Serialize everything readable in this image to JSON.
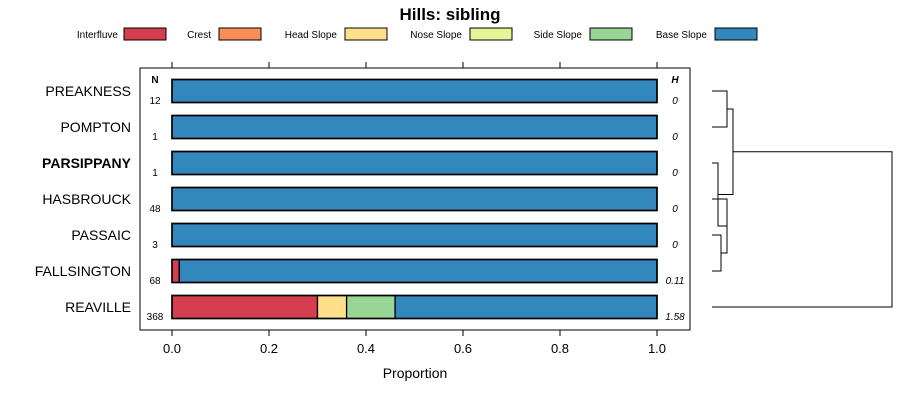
{
  "chart_data": {
    "type": "bar",
    "subtype": "stacked-horizontal-proportion",
    "title": "Hills: sibling",
    "xlabel": "Proportion",
    "xlim": [
      0,
      1
    ],
    "xticks": [
      0.0,
      0.2,
      0.4,
      0.6,
      0.8,
      1.0
    ],
    "xtick_labels": [
      "0.0",
      "0.2",
      "0.4",
      "0.6",
      "0.8",
      "1.0"
    ],
    "n_header": "N",
    "h_header": "H",
    "legend_placement": "top",
    "classes": [
      {
        "name": "Interfluve",
        "color": "#D53E4F"
      },
      {
        "name": "Crest",
        "color": "#FC8D59"
      },
      {
        "name": "Head Slope",
        "color": "#FEE08B"
      },
      {
        "name": "Nose Slope",
        "color": "#E6F598"
      },
      {
        "name": "Side Slope",
        "color": "#99D594"
      },
      {
        "name": "Base Slope",
        "color": "#3288BD"
      }
    ],
    "rows": [
      {
        "label": "PREAKNESS",
        "bold": false,
        "n": "12",
        "h": "0",
        "values": [
          0,
          0,
          0,
          0,
          0,
          1.0
        ]
      },
      {
        "label": "POMPTON",
        "bold": false,
        "n": "1",
        "h": "0",
        "values": [
          0,
          0,
          0,
          0,
          0,
          1.0
        ]
      },
      {
        "label": "PARSIPPANY",
        "bold": true,
        "n": "1",
        "h": "0",
        "values": [
          0,
          0,
          0,
          0,
          0,
          1.0
        ]
      },
      {
        "label": "HASBROUCK",
        "bold": false,
        "n": "48",
        "h": "0",
        "values": [
          0,
          0,
          0,
          0,
          0,
          1.0
        ]
      },
      {
        "label": "PASSAIC",
        "bold": false,
        "n": "3",
        "h": "0",
        "values": [
          0,
          0,
          0,
          0,
          0,
          1.0
        ]
      },
      {
        "label": "FALLSINGTON",
        "bold": false,
        "n": "68",
        "h": "0.11",
        "values": [
          0.015,
          0,
          0,
          0,
          0,
          0.985
        ]
      },
      {
        "label": "REAVILLE",
        "bold": false,
        "n": "368",
        "h": "1.58",
        "values": [
          0.3,
          0,
          0.06,
          0,
          0.1,
          0.54
        ]
      }
    ],
    "dendrogram": {
      "merges": [
        {
          "a": 0,
          "b": 1,
          "height": 0.05
        },
        {
          "a": 4,
          "b": 5,
          "height": 0.03
        },
        {
          "a": 3,
          "b": "m1",
          "height": 0.05
        },
        {
          "a": 2,
          "b": "m2",
          "height": 0.02
        },
        {
          "a": "m3",
          "b": "m0",
          "height": 0.07
        },
        {
          "a": 6,
          "b": "m4",
          "height": 0.6
        }
      ]
    }
  }
}
